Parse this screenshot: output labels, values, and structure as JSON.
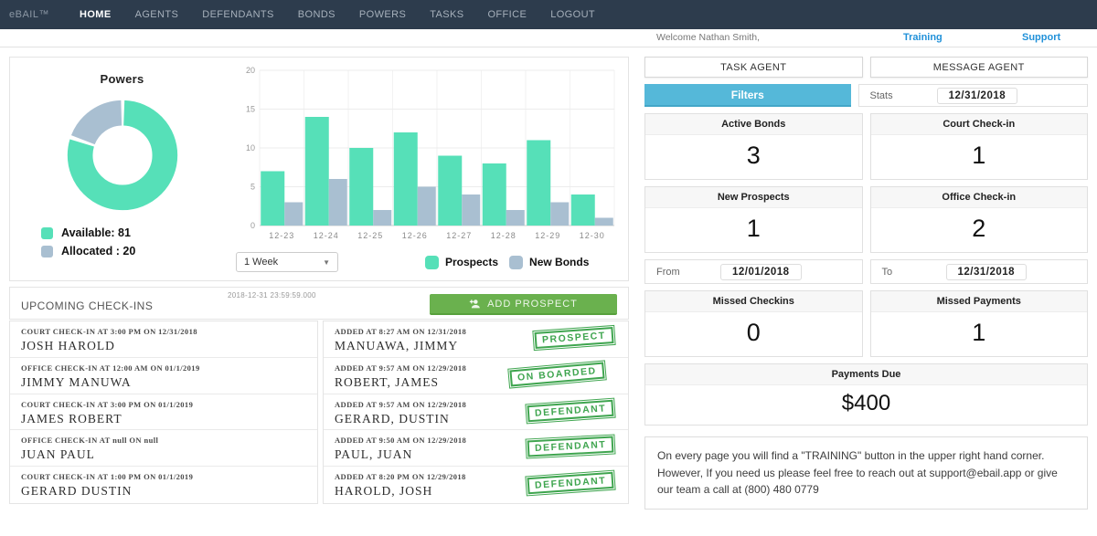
{
  "nav": {
    "brand": "eBAIL™",
    "items": [
      "HOME",
      "AGENTS",
      "DEFENDANTS",
      "BONDS",
      "POWERS",
      "TASKS",
      "OFFICE",
      "LOGOUT"
    ],
    "active": "HOME"
  },
  "header": {
    "welcome": "Welcome Nathan Smith,",
    "training": "Training",
    "support": "Support"
  },
  "powers": {
    "title": "Powers",
    "legend": [
      {
        "label": "Available: 81"
      },
      {
        "label": "Allocated : 20"
      }
    ]
  },
  "chart_controls": {
    "range_selector": "1 Week",
    "legend": [
      "Prospects",
      "New Bonds"
    ]
  },
  "chart_data": [
    {
      "type": "pie",
      "title": "Powers",
      "labels": [
        "Available",
        "Allocated"
      ],
      "values": [
        81,
        20
      ],
      "colors": [
        "#56e0b8",
        "#a9bfd1"
      ],
      "donut": true
    },
    {
      "type": "bar",
      "categories": [
        "12-23",
        "12-24",
        "12-25",
        "12-26",
        "12-27",
        "12-28",
        "12-29",
        "12-30"
      ],
      "series": [
        {
          "name": "Prospects",
          "values": [
            7,
            14,
            10,
            12,
            9,
            8,
            11,
            4
          ],
          "color": "#56e0b8"
        },
        {
          "name": "New Bonds",
          "values": [
            3,
            6,
            2,
            5,
            4,
            2,
            3,
            1
          ],
          "color": "#a9bfd1"
        }
      ],
      "ylim": [
        0,
        20
      ],
      "yticks": [
        0,
        5,
        10,
        15,
        20
      ],
      "grid": true,
      "legend_position": "bottom"
    }
  ],
  "checkins": {
    "title": "UPCOMING CHECK-INS",
    "timestamp": "2018-12-31 23:59:59.000",
    "add_button": "ADD PROSPECT",
    "items": [
      {
        "meta": "COURT CHECK-IN AT 3:00 PM ON 12/31/2018",
        "name": "JOSH HAROLD"
      },
      {
        "meta": "OFFICE CHECK-IN AT 12:00 AM ON 01/1/2019",
        "name": "JIMMY MANUWA"
      },
      {
        "meta": "COURT CHECK-IN AT 3:00 PM ON 01/1/2019",
        "name": "JAMES ROBERT"
      },
      {
        "meta": "OFFICE CHECK-IN AT null ON null",
        "name": "JUAN PAUL"
      },
      {
        "meta": "COURT CHECK-IN AT 1:00 PM ON 01/1/2019",
        "name": "GERARD DUSTIN"
      }
    ]
  },
  "added": {
    "items": [
      {
        "meta": "ADDED AT 8:27 AM ON 12/31/2018",
        "name": "MANUAWA, JIMMY",
        "stamp": "PROSPECT"
      },
      {
        "meta": "ADDED AT 9:57 AM ON 12/29/2018",
        "name": "ROBERT, JAMES",
        "stamp": "ON BOARDED"
      },
      {
        "meta": "ADDED AT 9:57 AM ON 12/29/2018",
        "name": "GERARD, DUSTIN",
        "stamp": "DEFENDANT"
      },
      {
        "meta": "ADDED AT 9:50 AM ON 12/29/2018",
        "name": "PAUL, JUAN",
        "stamp": "DEFENDANT"
      },
      {
        "meta": "ADDED AT 8:20 PM ON 12/29/2018",
        "name": "HAROLD, JOSH",
        "stamp": "DEFENDANT"
      }
    ]
  },
  "panel": {
    "task_agent": "TASK AGENT",
    "message_agent": "MESSAGE AGENT",
    "filters": "Filters",
    "stats_label": "Stats",
    "stats_date": "12/31/2018",
    "cards": [
      {
        "title": "Active Bonds",
        "value": "3"
      },
      {
        "title": "Court Check-in",
        "value": "1"
      },
      {
        "title": "New Prospects",
        "value": "1"
      },
      {
        "title": "Office Check-in",
        "value": "2"
      },
      {
        "title": "Missed Checkins",
        "value": "0"
      },
      {
        "title": "Missed Payments",
        "value": "1"
      }
    ],
    "from_label": "From",
    "from_date": "12/01/2018",
    "to_label": "To",
    "to_date": "12/31/2018",
    "payments": {
      "title": "Payments Due",
      "value": "$400"
    },
    "note": "On every page you will find a \"TRAINING\" button in the upper right hand corner. However, If you need us please feel free to reach out at support@ebail.app or give our team a call at (800) 480 0779"
  },
  "colors": {
    "teal": "#56e0b8",
    "slate": "#a9bfd1",
    "nav_bg": "#2d3c4d",
    "link_blue": "#2191d9",
    "filters_blue": "#55b8d9",
    "button_green": "#6ab14e",
    "stamp_green": "#2f9e41"
  }
}
